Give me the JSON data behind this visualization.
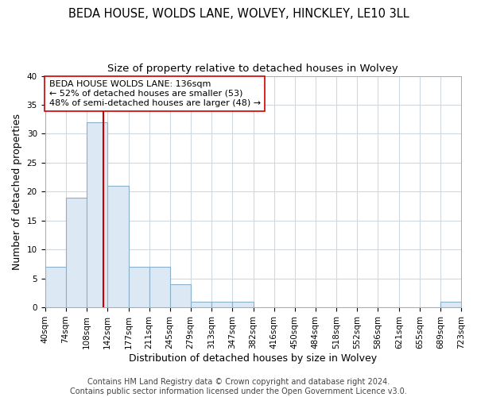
{
  "title": "BEDA HOUSE, WOLDS LANE, WOLVEY, HINCKLEY, LE10 3LL",
  "subtitle": "Size of property relative to detached houses in Wolvey",
  "xlabel": "Distribution of detached houses by size in Wolvey",
  "ylabel": "Number of detached properties",
  "bin_edges": [
    40,
    74,
    108,
    142,
    177,
    211,
    245,
    279,
    313,
    347,
    382,
    416,
    450,
    484,
    518,
    552,
    586,
    621,
    655,
    689,
    723
  ],
  "bar_heights": [
    7,
    19,
    32,
    21,
    7,
    7,
    4,
    1,
    1,
    1,
    0,
    0,
    0,
    0,
    0,
    0,
    0,
    0,
    0,
    1,
    0
  ],
  "bar_color": "#dce9f5",
  "bar_edge_color": "#8ab0cc",
  "property_size": 136,
  "red_line_color": "#cc0000",
  "annotation_text": "BEDA HOUSE WOLDS LANE: 136sqm\n← 52% of detached houses are smaller (53)\n48% of semi-detached houses are larger (48) →",
  "annotation_box_color": "#ffffff",
  "annotation_box_edge": "#cc0000",
  "ylim": [
    0,
    40
  ],
  "yticks": [
    0,
    5,
    10,
    15,
    20,
    25,
    30,
    35,
    40
  ],
  "footer_text": "Contains HM Land Registry data © Crown copyright and database right 2024.\nContains public sector information licensed under the Open Government Licence v3.0.",
  "background_color": "#ffffff",
  "plot_background": "#ffffff",
  "grid_color": "#d0d8e0",
  "title_fontsize": 10.5,
  "subtitle_fontsize": 9.5,
  "axis_label_fontsize": 9,
  "tick_fontsize": 7.5,
  "annotation_fontsize": 8,
  "footer_fontsize": 7
}
